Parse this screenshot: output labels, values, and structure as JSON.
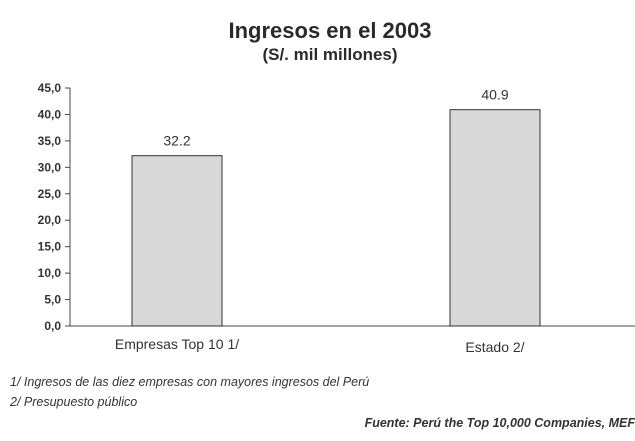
{
  "chart_data": {
    "type": "bar",
    "title": "Ingresos en el 2003",
    "subtitle": "(S/. mil millones)",
    "categories": [
      "Empresas Top 10 1/",
      "Estado 2/"
    ],
    "values": [
      32.2,
      40.9
    ],
    "value_labels": [
      "32.2",
      "40.9"
    ],
    "ylim": [
      0,
      45
    ],
    "yticks": [
      "0,0",
      "5,0",
      "10,0",
      "15,0",
      "20,0",
      "25,0",
      "30,0",
      "35,0",
      "40,0",
      "45,0"
    ],
    "grid": false,
    "bar_color": "#d8d8d8"
  },
  "notes": [
    "1/ Ingresos de las diez empresas con mayores ingresos del Perú",
    "2/ Presupuesto público"
  ],
  "source": "Fuente: Perú the Top 10,000 Companies, MEF"
}
